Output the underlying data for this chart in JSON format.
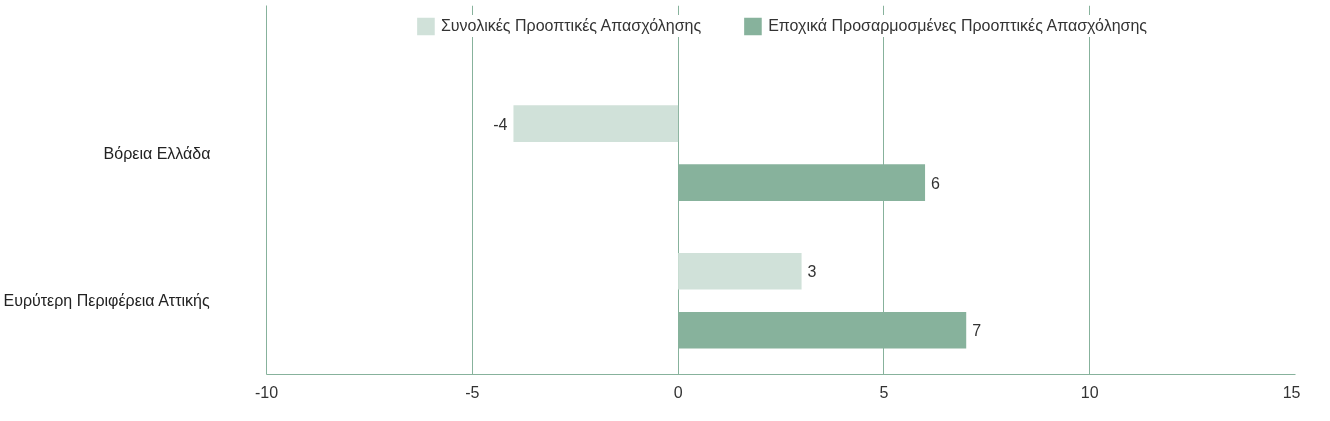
{
  "chart_data": {
    "type": "bar",
    "orientation": "horizontal",
    "categories": [
      "Βόρεια Ελλάδα",
      "Ευρύτερη Περιφέρεια Αττικής"
    ],
    "series": [
      {
        "name": "Συνολικές Προοπτικές Απασχόλησης",
        "color": "#d0e1d9",
        "values": [
          -4,
          3
        ]
      },
      {
        "name": "Εποχικά Προσαρμοσμένες Προοπτικές Απασχόλησης",
        "color": "#87b29c",
        "values": [
          6,
          7
        ]
      }
    ],
    "data_labels": true,
    "xlim": [
      -10,
      15
    ],
    "xticks": [
      -10,
      -5,
      0,
      5,
      10,
      15
    ],
    "grid": "x",
    "legend": "top"
  }
}
